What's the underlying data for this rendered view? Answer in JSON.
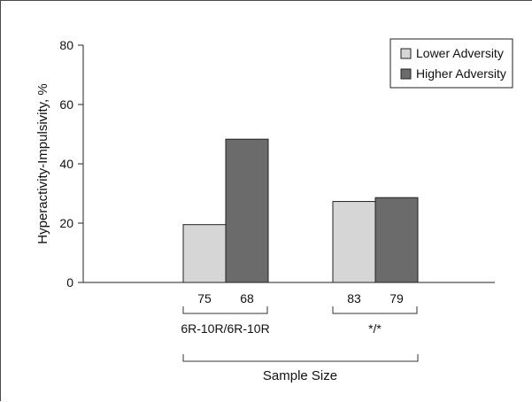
{
  "chart_data": {
    "type": "bar",
    "ylabel": "Hyperactivity-Impulsivity, %",
    "ylim": [
      0,
      80
    ],
    "yticks": [
      0,
      20,
      40,
      60,
      80
    ],
    "groups": [
      {
        "name": "6R-10R/6R-10R",
        "sample_sizes": [
          "75",
          "68"
        ]
      },
      {
        "name": "*/*",
        "sample_sizes": [
          "83",
          "79"
        ]
      }
    ],
    "series": [
      {
        "name": "Lower Adversity",
        "color": "#d6d6d6",
        "values": [
          19.5,
          27.3
        ]
      },
      {
        "name": "Higher Adversity",
        "color": "#6b6b6b",
        "values": [
          48.3,
          28.6
        ]
      }
    ],
    "xlabel": "Sample Size",
    "legend_position": "top-right",
    "grid": false
  }
}
